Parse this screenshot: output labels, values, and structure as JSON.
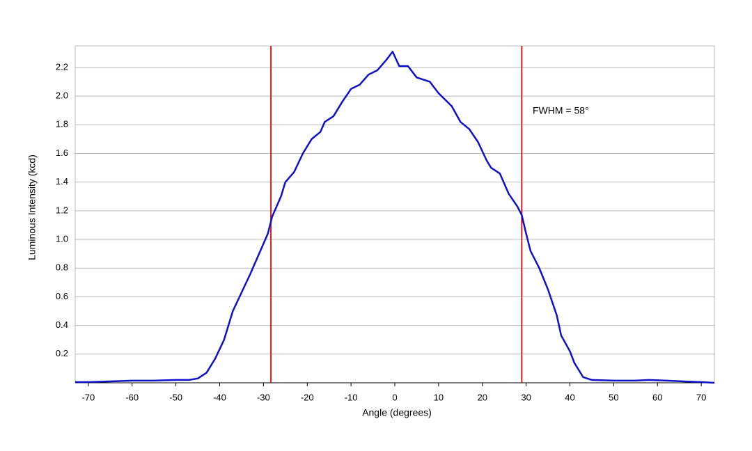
{
  "chart_data": {
    "type": "line",
    "xlabel": "Angle (degrees)",
    "ylabel": "Luminous Intensity (kcd)",
    "annotations": [
      "FWHM = 58°"
    ],
    "x": [
      -73,
      -70,
      -65,
      -60,
      -55,
      -50,
      -47,
      -45,
      -43,
      -41,
      -39,
      -37,
      -35,
      -33,
      -31,
      -29,
      -28,
      -26,
      -25,
      -23,
      -21,
      -19,
      -17,
      -16,
      -14,
      -12,
      -10,
      -8,
      -6,
      -4,
      -2,
      -0.5,
      1,
      3,
      5,
      8,
      10,
      13,
      15,
      17,
      19,
      21,
      22,
      24,
      26,
      28,
      29,
      30,
      31,
      33,
      35,
      37,
      38,
      40,
      41,
      43,
      45,
      50,
      55,
      58,
      62,
      66,
      70,
      73
    ],
    "series": [
      {
        "name": "Luminous Intensity",
        "color": "#1010c8",
        "values": [
          0.005,
          0.005,
          0.01,
          0.015,
          0.015,
          0.02,
          0.02,
          0.03,
          0.07,
          0.17,
          0.3,
          0.5,
          0.63,
          0.76,
          0.9,
          1.04,
          1.16,
          1.3,
          1.4,
          1.47,
          1.6,
          1.7,
          1.75,
          1.82,
          1.86,
          1.96,
          2.05,
          2.08,
          2.15,
          2.18,
          2.25,
          2.31,
          2.21,
          2.21,
          2.13,
          2.1,
          2.02,
          1.93,
          1.82,
          1.77,
          1.68,
          1.55,
          1.5,
          1.46,
          1.32,
          1.23,
          1.17,
          1.04,
          0.92,
          0.8,
          0.65,
          0.47,
          0.33,
          0.22,
          0.14,
          0.04,
          0.02,
          0.015,
          0.015,
          0.02,
          0.015,
          0.01,
          0.005,
          0.0
        ]
      }
    ],
    "vlines": [
      -28.3,
      29
    ],
    "vline_color": "#cc2020",
    "xlim": [
      -73,
      73
    ],
    "ylim": [
      0,
      2.35
    ],
    "xticks": [
      -70,
      -60,
      -50,
      -40,
      -30,
      -20,
      -10,
      0,
      10,
      20,
      30,
      40,
      50,
      60,
      70
    ],
    "yticks": [
      0.2,
      0.4,
      0.6,
      0.8,
      {
        "value": 1,
        "label": "1.0"
      },
      1.2,
      1.4,
      1.6,
      1.8,
      {
        "value": 2,
        "label": "2.0"
      },
      2.2
    ],
    "grid": true
  }
}
